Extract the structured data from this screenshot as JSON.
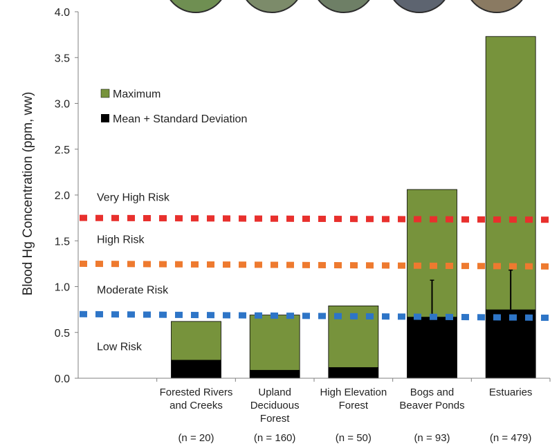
{
  "chart_data": {
    "type": "bar",
    "ylabel": "Blood Hg Concentration (ppm, ww)",
    "ylim": [
      0,
      4.0
    ],
    "yticks": [
      "0.0",
      "0.5",
      "1.0",
      "1.5",
      "2.0",
      "2.5",
      "3.0",
      "3.5",
      "4.0"
    ],
    "categories": [
      {
        "lines": [
          "Forested Rivers",
          "and Creeks"
        ],
        "n": "(n = 20)"
      },
      {
        "lines": [
          "Upland",
          "Deciduous",
          "Forest"
        ],
        "n": "(n = 160)"
      },
      {
        "lines": [
          "High Elevation",
          "Forest"
        ],
        "n": "(n = 50)"
      },
      {
        "lines": [
          "Bogs and",
          "Beaver Ponds"
        ],
        "n": "(n = 93)"
      },
      {
        "lines": [
          "Estuaries"
        ],
        "n": "(n = 479)"
      }
    ],
    "series": [
      {
        "name": "Maximum",
        "color": "#77933c",
        "values": [
          0.62,
          0.69,
          0.79,
          2.06,
          3.73
        ]
      },
      {
        "name": "Mean + Standard Deviation",
        "color": "#000000",
        "values": [
          0.2,
          0.09,
          0.12,
          0.67,
          0.75
        ]
      }
    ],
    "error_bar_tops": [
      null,
      null,
      null,
      1.07,
      1.18
    ],
    "risk_thresholds": [
      {
        "color": "#e8302d",
        "y_start": 1.75,
        "y_end": 1.73
      },
      {
        "color": "#ee7a2f",
        "y_start": 1.25,
        "y_end": 1.22
      },
      {
        "color": "#2e75c7",
        "y_start": 0.7,
        "y_end": 0.66
      }
    ],
    "zone_labels": [
      {
        "text": "Very High Risk",
        "y": 1.98
      },
      {
        "text": "High Risk",
        "y": 1.52
      },
      {
        "text": "Moderate Risk",
        "y": 0.97
      },
      {
        "text": "Low Risk",
        "y": 0.35
      }
    ],
    "grid": false,
    "legend_position": "upper-left"
  }
}
